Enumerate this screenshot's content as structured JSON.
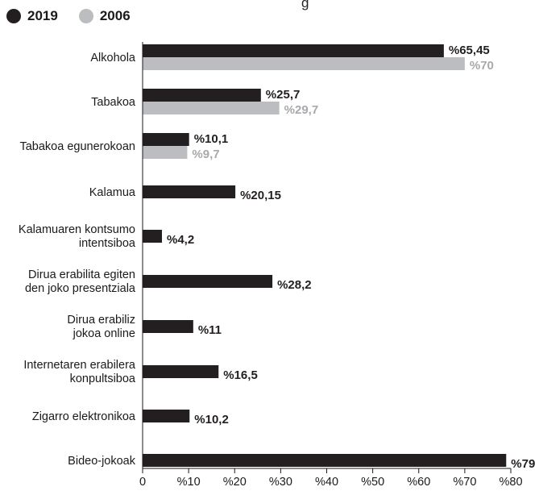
{
  "top_partial_text": "g",
  "chart_data": {
    "type": "bar",
    "orientation": "horizontal",
    "categories": [
      [
        "Alkohola"
      ],
      [
        "Tabakoa"
      ],
      [
        "Tabakoa egunerokoan"
      ],
      [
        "Kalamua"
      ],
      [
        "Kalamuaren kontsumo",
        "intentsiboa"
      ],
      [
        "Dirua erabilita egiten",
        "den joko presentziala"
      ],
      [
        "Dirua erabiliz",
        "jokoa online"
      ],
      [
        "Internetaren erabilera",
        "konpultsiboa"
      ],
      [
        "Zigarro elektronikoa"
      ],
      [
        "Bideo-jokoak"
      ]
    ],
    "series": [
      {
        "name": "2019",
        "color": "#231f20",
        "values": [
          65.45,
          25.7,
          10.1,
          20.15,
          4.2,
          28.2,
          11,
          16.5,
          10.2,
          79
        ],
        "labels": [
          "%65,45",
          "%25,7",
          "%10,1",
          "%20,15",
          "%4,2",
          "%28,2",
          "%11",
          "%16,5",
          "%10,2",
          "%79"
        ]
      },
      {
        "name": "2006",
        "color": "#bcbdc0",
        "values": [
          70,
          29.7,
          9.7,
          null,
          null,
          null,
          null,
          null,
          null,
          null
        ],
        "labels": [
          "%70",
          "%29,7",
          "%9,7",
          null,
          null,
          null,
          null,
          null,
          null,
          null
        ]
      }
    ],
    "xlim": [
      0,
      80
    ],
    "xticks": [
      0,
      10,
      20,
      30,
      40,
      50,
      60,
      70,
      80
    ],
    "xtick_labels": [
      "0",
      "%10",
      "%20",
      "%30",
      "%40",
      "%50",
      "%60",
      "%70",
      "%80"
    ],
    "legend_position": "top-left",
    "grid": false
  }
}
